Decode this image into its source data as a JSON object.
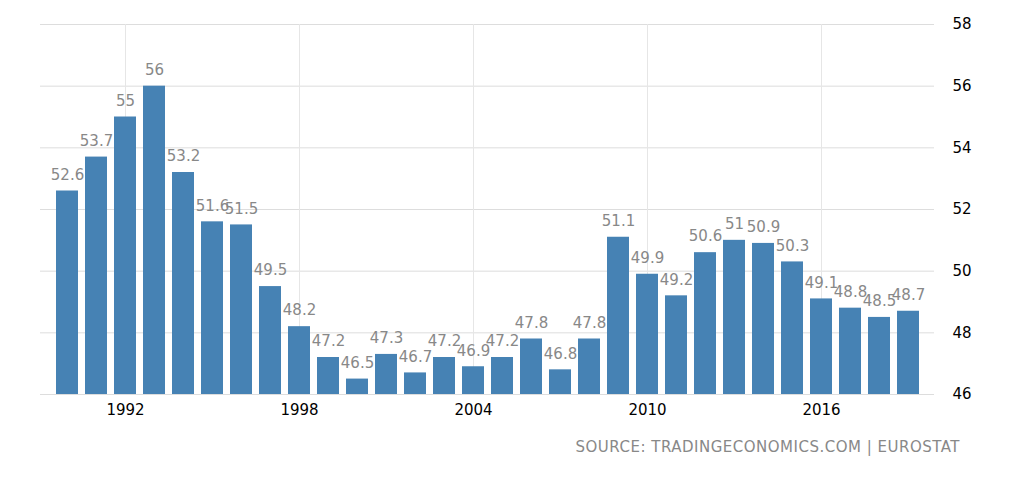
{
  "chart_data": {
    "type": "bar",
    "caption": "SOURCE: TRADINGECONOMICS.COM | EUROSTAT",
    "categories": [
      null,
      null,
      "1992",
      null,
      null,
      null,
      null,
      null,
      "1998",
      null,
      null,
      null,
      null,
      null,
      "2004",
      null,
      null,
      null,
      null,
      null,
      "2010",
      null,
      null,
      null,
      null,
      null,
      "2016",
      null,
      null,
      null
    ],
    "values": [
      52.6,
      53.7,
      55,
      56,
      53.2,
      51.6,
      51.5,
      49.5,
      48.2,
      47.2,
      46.5,
      47.3,
      46.7,
      47.2,
      46.9,
      47.2,
      47.8,
      46.8,
      47.8,
      51.1,
      49.9,
      49.2,
      50.6,
      51,
      50.9,
      50.3,
      49.1,
      48.8,
      48.5,
      48.7
    ],
    "color": "#4682b4",
    "ylim": [
      46,
      58
    ],
    "yticks": [
      46,
      48,
      50,
      52,
      54,
      56,
      58
    ],
    "grid": true,
    "data_labels": true
  }
}
